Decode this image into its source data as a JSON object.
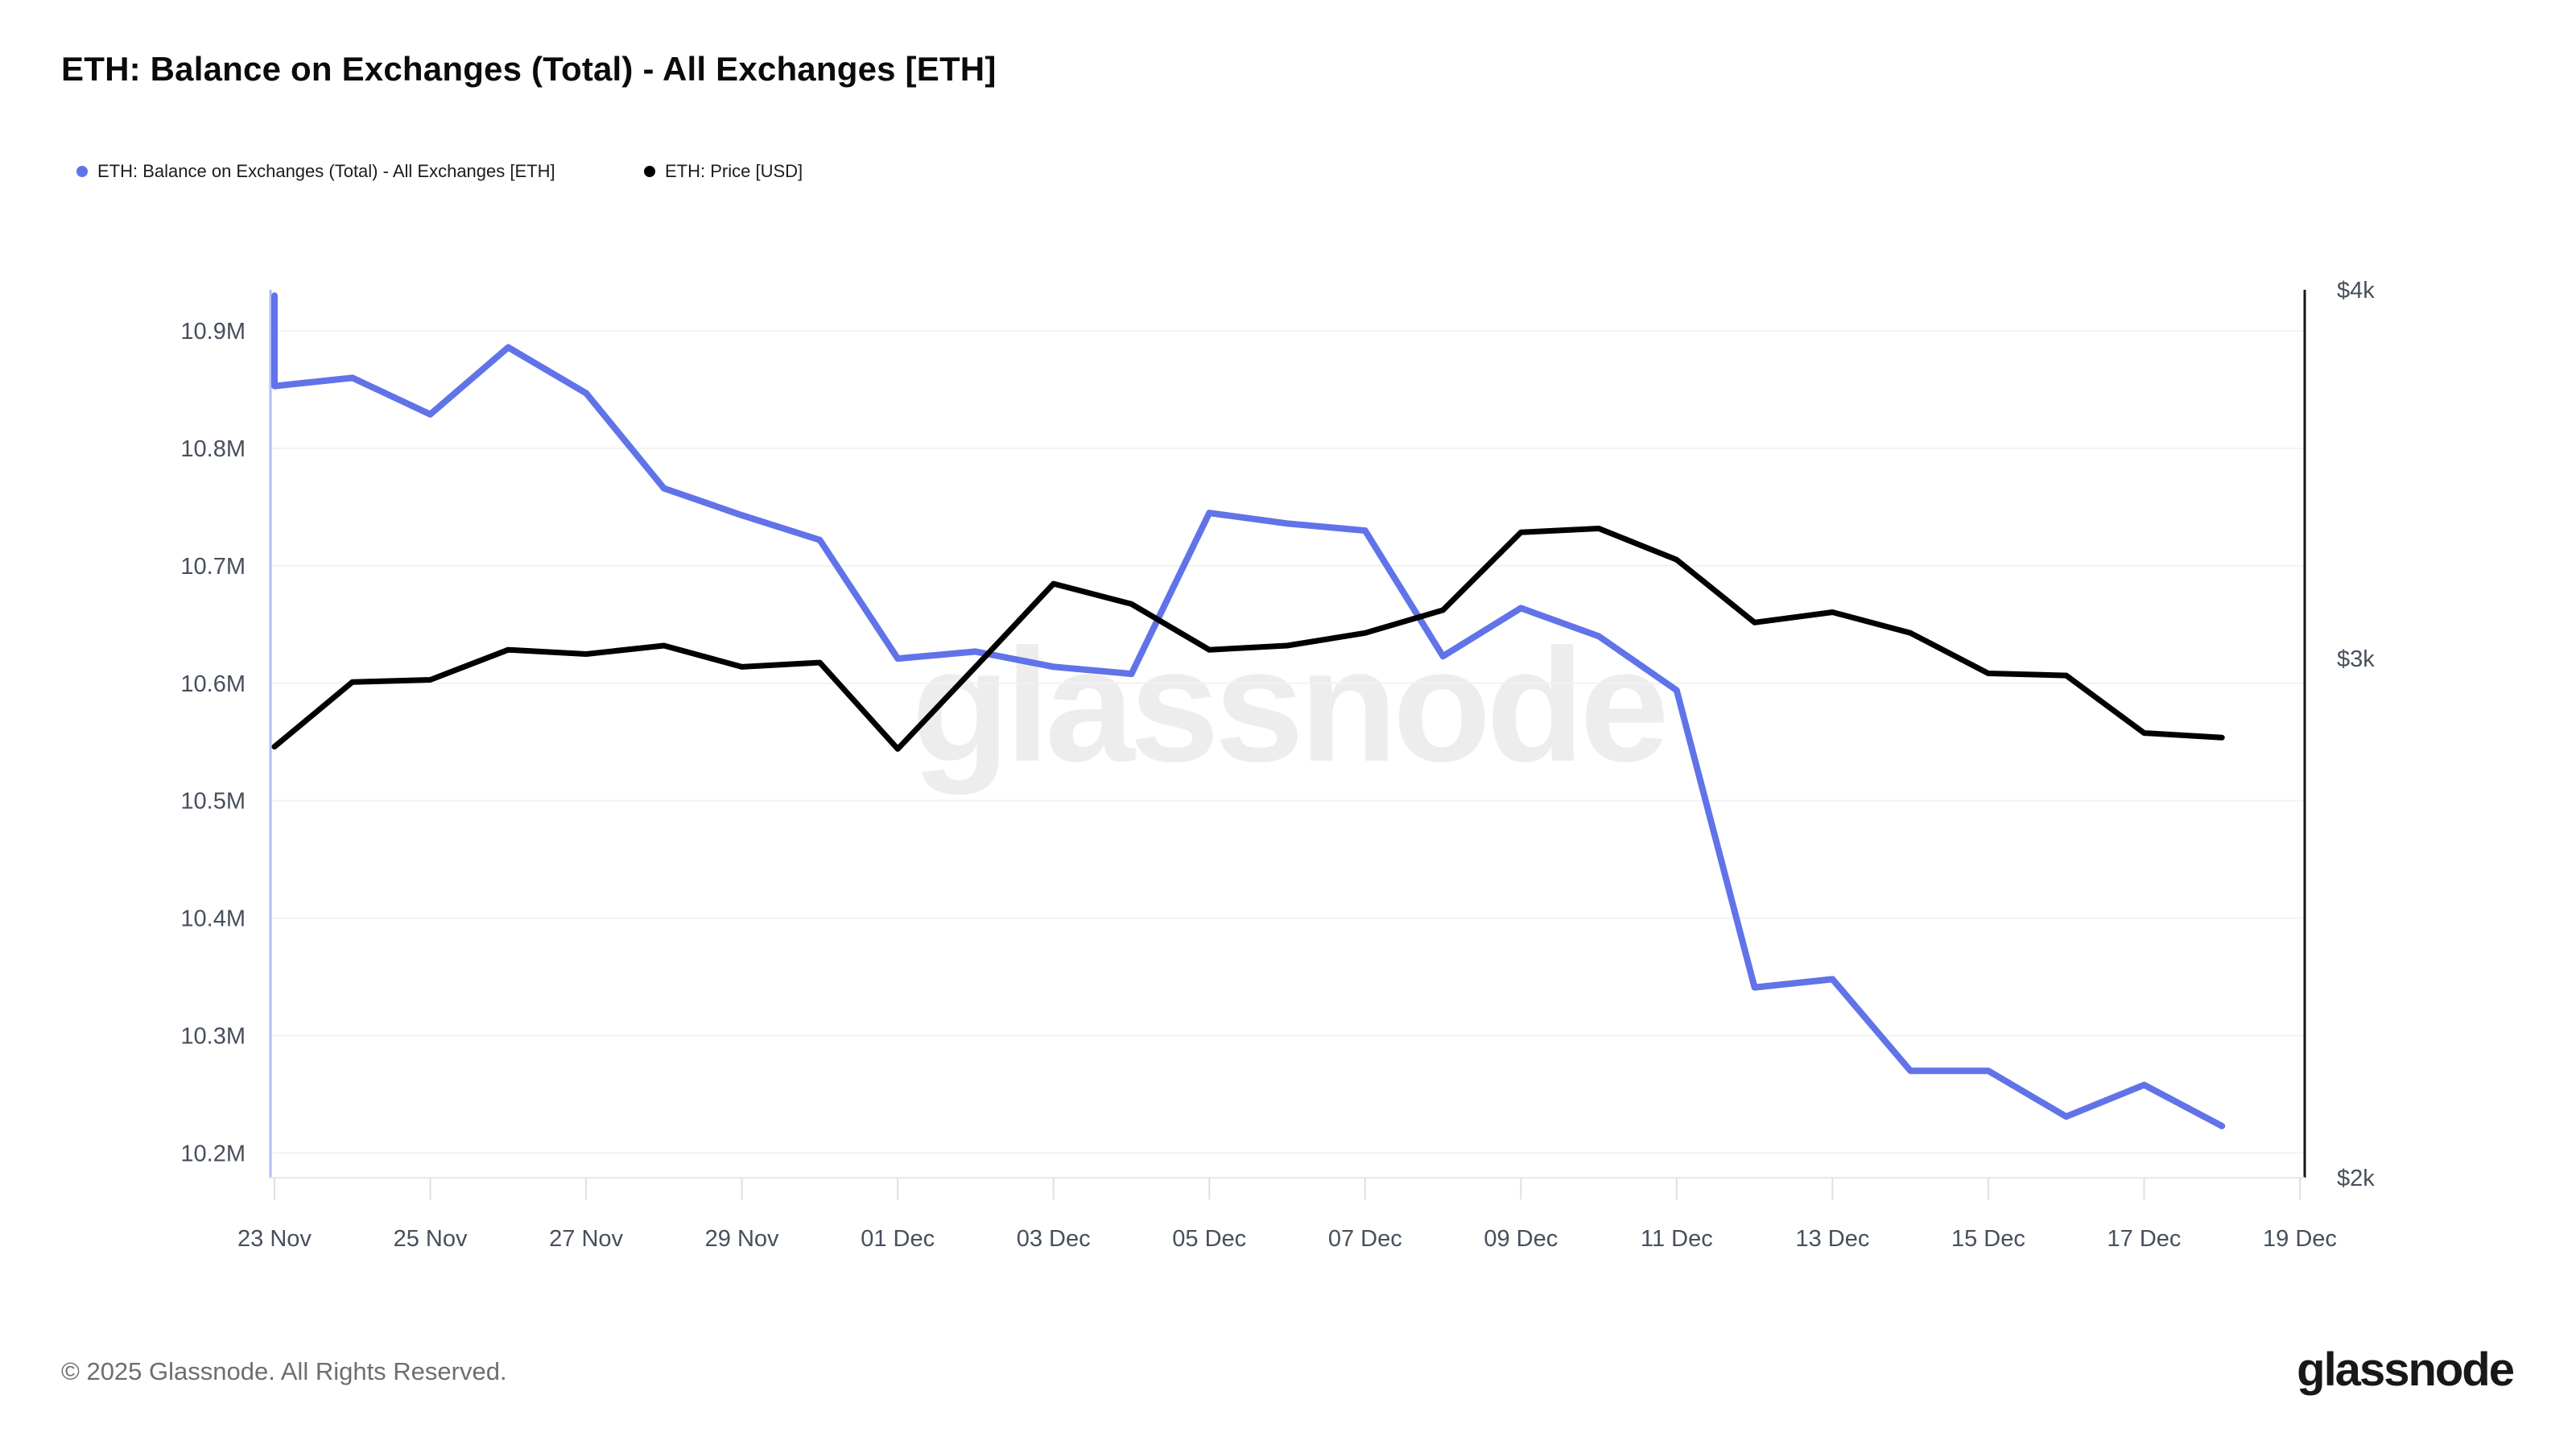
{
  "header": {
    "title": "ETH: Balance on Exchanges (Total) - All Exchanges [ETH]"
  },
  "legend": {
    "balance": {
      "label": "ETH: Balance on Exchanges (Total) - All Exchanges [ETH]",
      "color": "#6173e8"
    },
    "price": {
      "label": "ETH: Price [USD]",
      "color": "#000000"
    }
  },
  "watermark": "glassnode",
  "footer": {
    "copyright": "© 2025 Glassnode. All Rights Reserved.",
    "brand": "glassnode"
  },
  "colors": {
    "balance_line": "#6173e8",
    "price_line": "#000000",
    "left_axis_line": "#b4bdf2",
    "right_axis_line": "#16161d",
    "bottom_axis_line": "#e8e8e8",
    "gridline": "#f2f2f2",
    "tick_mark": "#e0e0e0",
    "tick_text": "#474f5c",
    "watermark_text": "#ededed"
  },
  "chart_data": {
    "type": "line",
    "x": [
      "23 Nov",
      "24 Nov",
      "25 Nov",
      "26 Nov",
      "27 Nov",
      "28 Nov",
      "29 Nov",
      "30 Nov",
      "01 Dec",
      "02 Dec",
      "03 Dec",
      "04 Dec",
      "05 Dec",
      "06 Dec",
      "07 Dec",
      "08 Dec",
      "09 Dec",
      "10 Dec",
      "11 Dec",
      "12 Dec",
      "13 Dec",
      "14 Dec",
      "15 Dec",
      "16 Dec",
      "17 Dec",
      "18 Dec"
    ],
    "x_tick_labels": [
      "23 Nov",
      "25 Nov",
      "27 Nov",
      "29 Nov",
      "01 Dec",
      "03 Dec",
      "05 Dec",
      "07 Dec",
      "09 Dec",
      "11 Dec",
      "13 Dec",
      "15 Dec",
      "17 Dec",
      "19 Dec"
    ],
    "series": [
      {
        "name": "ETH: Balance on Exchanges (Total) - All Exchanges [ETH]",
        "axis": "left",
        "unit": "M ETH",
        "color": "#6173e8",
        "start_spike_value": 10.93,
        "values": [
          10.853,
          10.86,
          10.829,
          10.886,
          10.847,
          10.766,
          10.743,
          10.722,
          10.621,
          10.627,
          10.614,
          10.608,
          10.745,
          10.736,
          10.73,
          10.623,
          10.664,
          10.64,
          10.594,
          10.341,
          10.348,
          10.27,
          10.27,
          10.231,
          10.258,
          10.223
        ]
      },
      {
        "name": "ETH: Price [USD]",
        "axis": "right",
        "unit": "USD",
        "color": "#000000",
        "values": [
          2800,
          2945,
          2950,
          3020,
          3010,
          3030,
          2980,
          2990,
          2795,
          2980,
          3180,
          3130,
          3020,
          3030,
          3060,
          3115,
          3310,
          3320,
          3240,
          3085,
          3110,
          3060,
          2965,
          2960,
          2830,
          2820
        ]
      }
    ],
    "left_axis": {
      "scale": "linear",
      "ticks": [
        "10.9M",
        "10.8M",
        "10.7M",
        "10.6M",
        "10.5M",
        "10.4M",
        "10.3M",
        "10.2M"
      ],
      "tick_values": [
        10.9,
        10.8,
        10.7,
        10.6,
        10.5,
        10.4,
        10.3,
        10.2
      ],
      "range_top": 10.935,
      "range_bottom": 10.179
    },
    "right_axis": {
      "scale": "log",
      "ticks": [
        "$4k",
        "$3k",
        "$2k"
      ],
      "tick_values": [
        4000,
        3000,
        2000
      ],
      "range_top": 4000,
      "range_bottom": 2000
    },
    "grid": "horizontal-only",
    "legend_position": "top-left"
  }
}
